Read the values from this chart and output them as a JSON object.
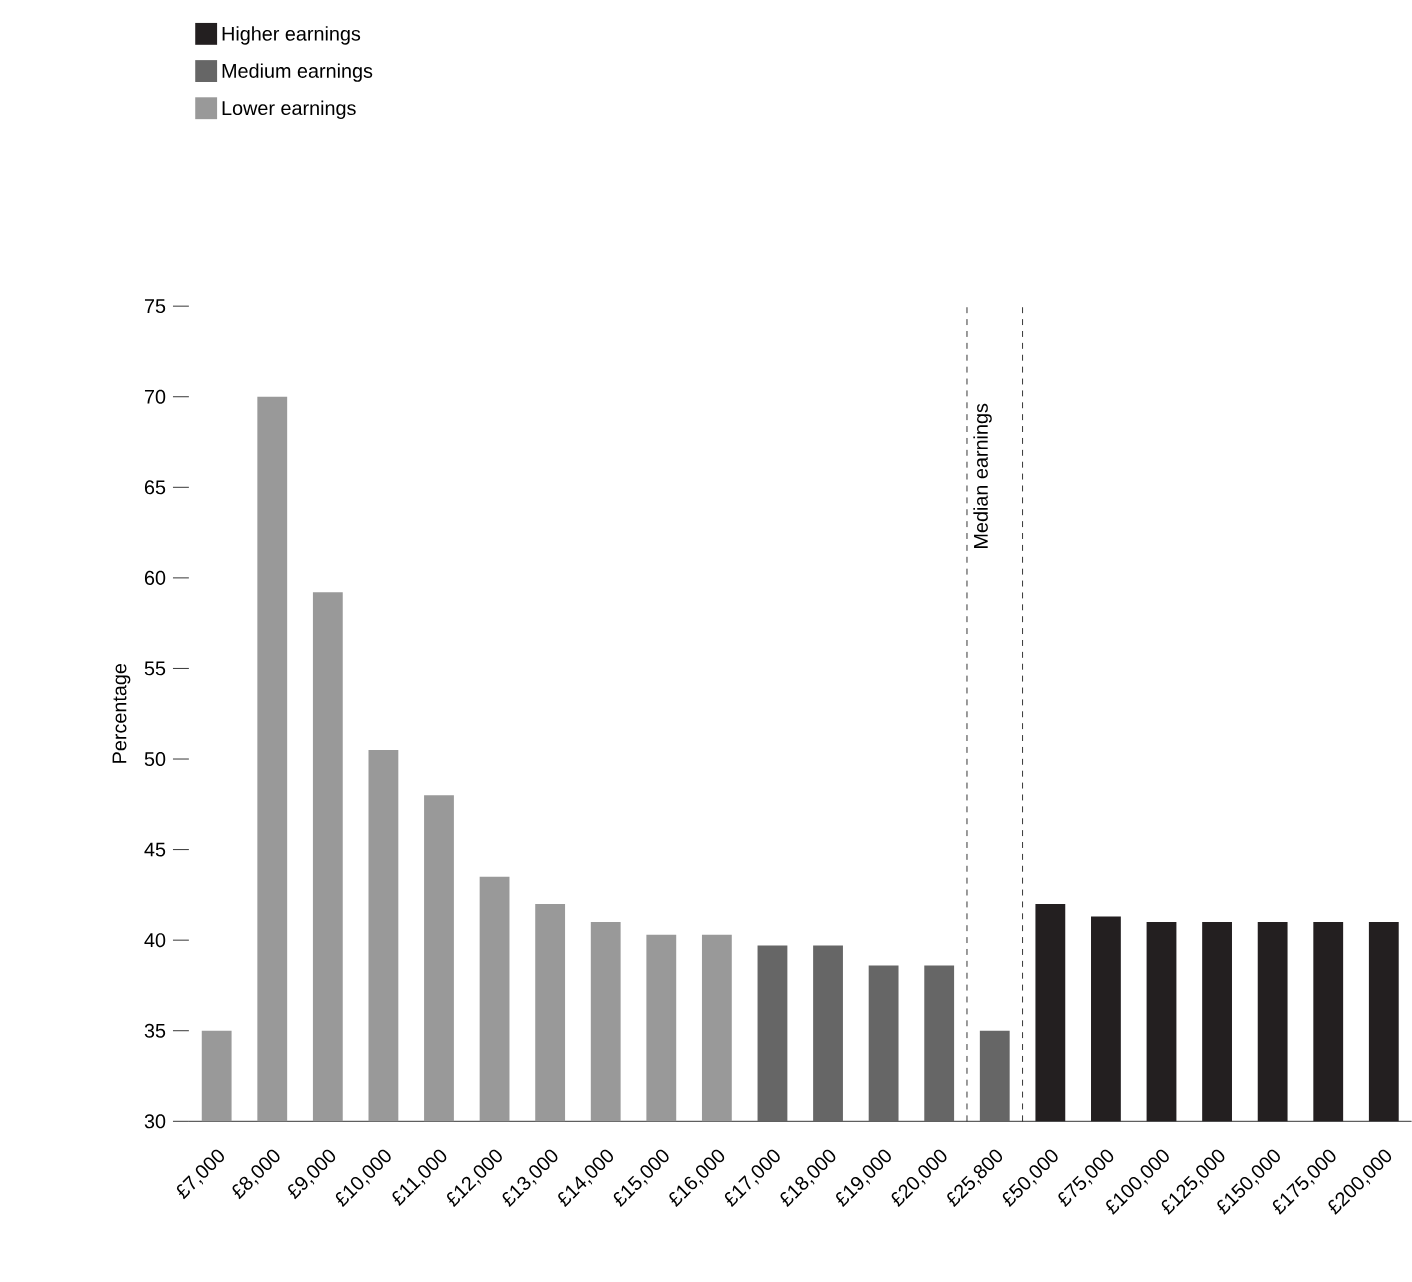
{
  "chart_data": {
    "type": "bar",
    "ylabel": "Percentage",
    "categories": [
      "£7,000",
      "£8,000",
      "£9,000",
      "£10,000",
      "£11,000",
      "£12,000",
      "£13,000",
      "£14,000",
      "£15,000",
      "£16,000",
      "£17,000",
      "£18,000",
      "£19,000",
      "£20,000",
      "£25,800",
      "£50,000",
      "£75,000",
      "£100,000",
      "£125,000",
      "£150,000",
      "£175,000",
      "£200,000"
    ],
    "series": [
      {
        "name": "Higher earnings",
        "color": "#231f20",
        "values": [
          null,
          null,
          null,
          null,
          null,
          null,
          null,
          null,
          null,
          null,
          null,
          null,
          null,
          null,
          null,
          42,
          41.3,
          41,
          41,
          41,
          41,
          41
        ]
      },
      {
        "name": "Medium earnings",
        "color": "#666666",
        "values": [
          null,
          null,
          null,
          null,
          null,
          null,
          null,
          null,
          null,
          null,
          39.7,
          39.7,
          38.6,
          38.6,
          35,
          null,
          null,
          null,
          null,
          null,
          null,
          null
        ]
      },
      {
        "name": "Lower earnings",
        "color": "#999999",
        "values": [
          35,
          70,
          59.2,
          50.5,
          48,
          43.5,
          42,
          41,
          40.3,
          40.3,
          null,
          null,
          null,
          null,
          null,
          null,
          null,
          null,
          null,
          null,
          null,
          null
        ]
      }
    ],
    "ylim": [
      30,
      75
    ],
    "yticks": [
      30,
      35,
      40,
      45,
      50,
      55,
      60,
      65,
      70,
      75
    ],
    "annotations": [
      "Median earnings"
    ],
    "legend": "top left"
  }
}
